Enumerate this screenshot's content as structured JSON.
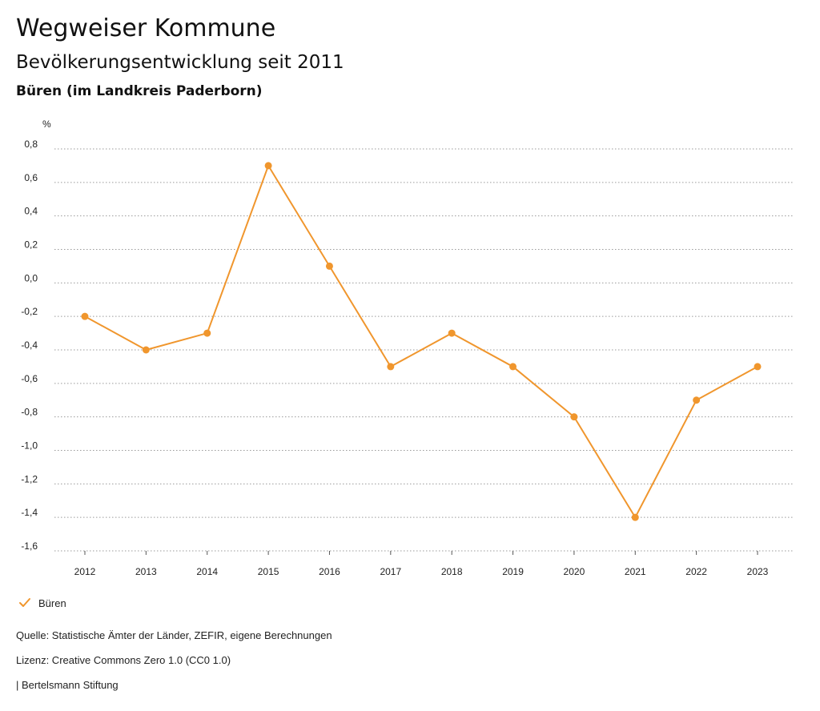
{
  "header": {
    "title": "Wegweiser Kommune",
    "subtitle": "Bevölkerungsentwicklung seit 2011",
    "place": "Büren (im Landkreis Paderborn)"
  },
  "chart_data": {
    "type": "line",
    "title": "Bevölkerungsentwicklung seit 2011",
    "ylabel": "%",
    "xlabel": "",
    "ylim": [
      -1.6,
      0.8
    ],
    "yticks": [
      "0,8",
      "0,6",
      "0,4",
      "0,2",
      "0,0",
      "-0,2",
      "-0,4",
      "-0,6",
      "-0,8",
      "-1,0",
      "-1,2",
      "-1,4",
      "-1,6"
    ],
    "ytick_values": [
      0.8,
      0.6,
      0.4,
      0.2,
      0.0,
      -0.2,
      -0.4,
      -0.6,
      -0.8,
      -1.0,
      -1.2,
      -1.4,
      -1.6
    ],
    "categories": [
      "2012",
      "2013",
      "2014",
      "2015",
      "2016",
      "2017",
      "2018",
      "2019",
      "2020",
      "2021",
      "2022",
      "2023"
    ],
    "series": [
      {
        "name": "Büren",
        "values": [
          -0.2,
          -0.4,
          -0.3,
          0.7,
          0.1,
          -0.5,
          -0.3,
          -0.5,
          -0.8,
          -1.4,
          -0.7,
          -0.5
        ],
        "color": "#f0962d"
      }
    ],
    "grid": true,
    "legend": "bottom-left"
  },
  "legend": {
    "label": "Büren",
    "color": "#f0962d"
  },
  "footer": {
    "source": "Quelle: Statistische Ämter der Länder, ZEFIR, eigene Berechnungen",
    "license": "Lizenz: Creative Commons Zero 1.0 (CC0 1.0)",
    "publisher": "| Bertelsmann Stiftung"
  }
}
